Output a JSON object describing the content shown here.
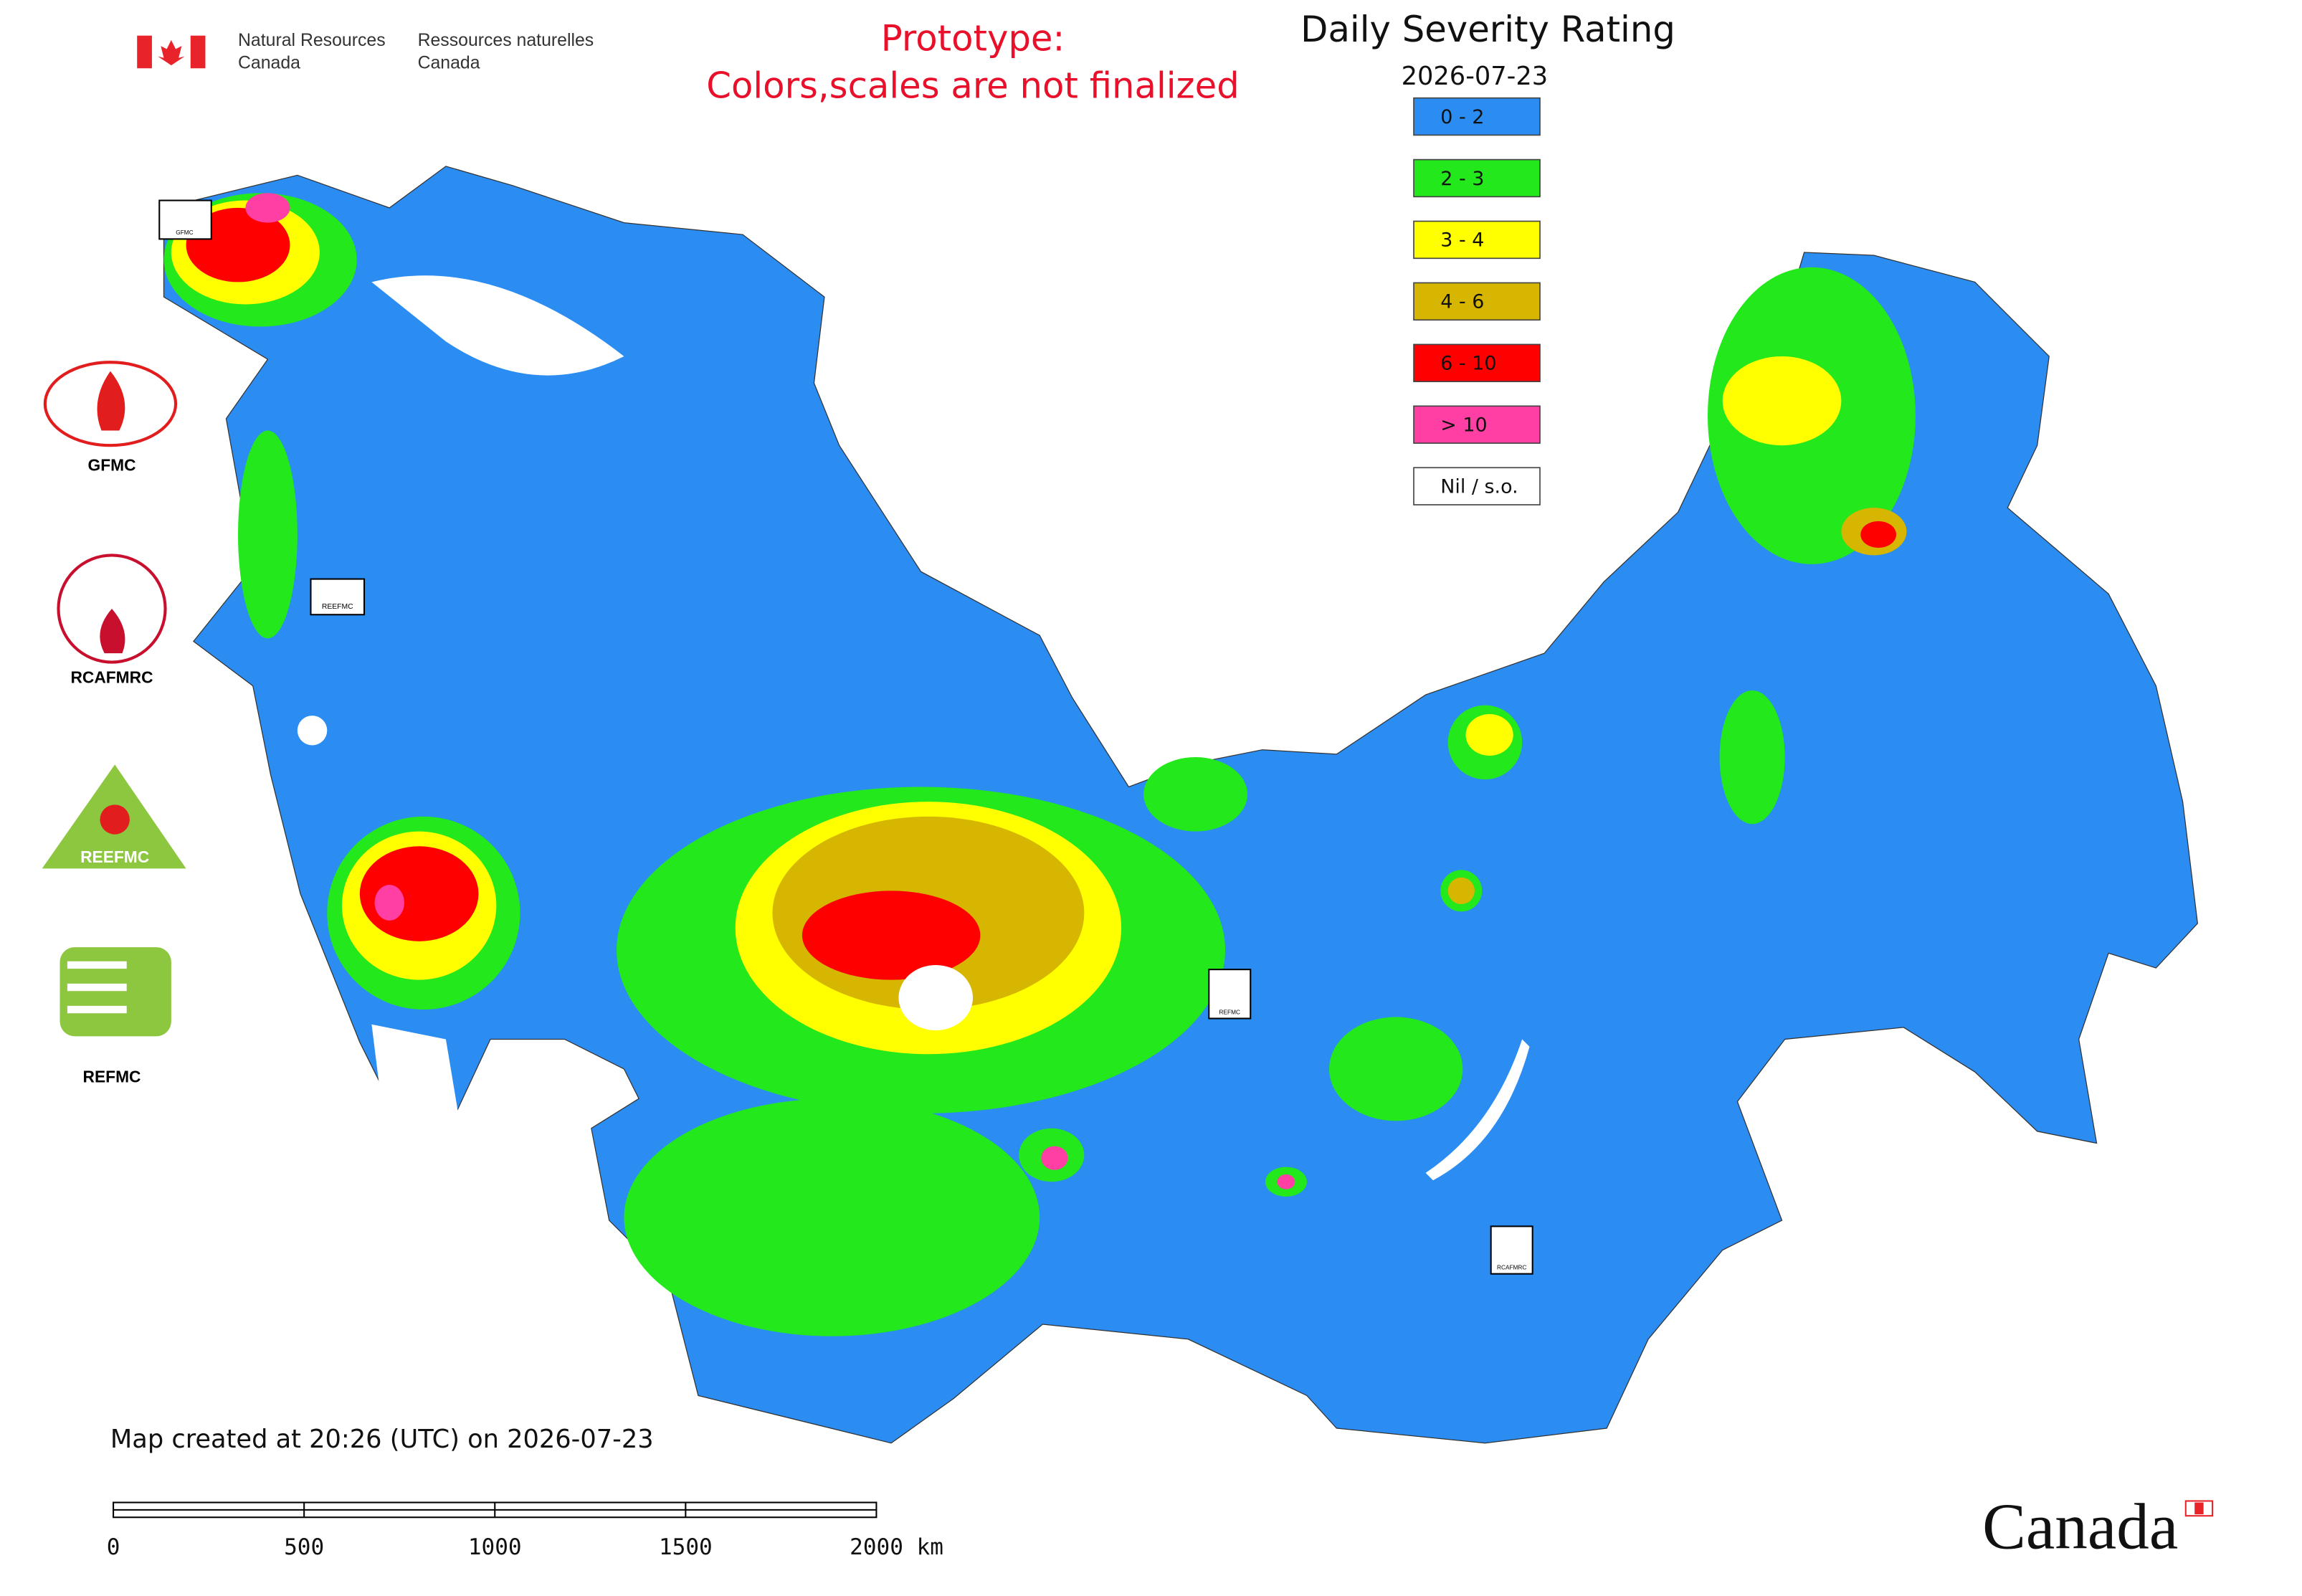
{
  "header": {
    "org_en_1": "Natural Resources",
    "org_en_2": "Canada",
    "org_fr_1": "Ressources naturelles",
    "org_fr_2": "Canada"
  },
  "notice": [
    "Prototype:",
    "Colors,scales are not finalized"
  ],
  "title": "Daily Severity Rating",
  "date": "2026-07-23",
  "legend": [
    {
      "label": "0 - 2",
      "color": "#2b8cf2"
    },
    {
      "label": "2 - 3",
      "color": "#22e81c"
    },
    {
      "label": "3 - 4",
      "color": "#ffff00"
    },
    {
      "label": "4 - 6",
      "color": "#d6b600"
    },
    {
      "label": "6 - 10",
      "color": "#ff0000"
    },
    {
      "label": "> 10",
      "color": "#ff3fa3"
    },
    {
      "label": "Nil / s.o.",
      "color": "#ffffff"
    }
  ],
  "logos": [
    "GFMC",
    "RCAFMRC",
    "REEFMC",
    "REFMC"
  ],
  "footer": "Map created at 20:26 (UTC) on 2026-07-23",
  "scale_bar": [
    "0",
    "500",
    "1000",
    "1500",
    "2000 km"
  ],
  "wordmark": "Canada"
}
